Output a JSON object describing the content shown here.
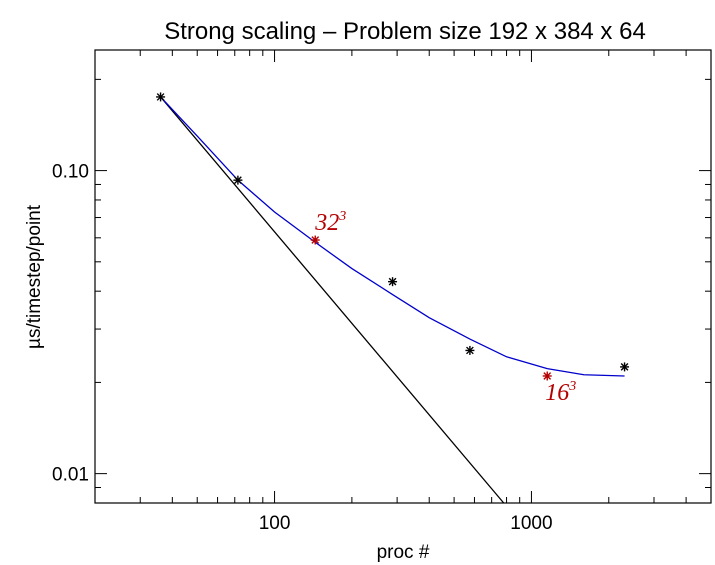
{
  "chart_data": {
    "type": "scatter",
    "title": "Strong scaling – Problem size 192 x 384 x 64",
    "xlabel": "proc #",
    "ylabel": "µs/timestep/point",
    "x_scale": "log",
    "y_scale": "log",
    "xlim": [
      20,
      5000
    ],
    "ylim": [
      0.008,
      0.25
    ],
    "x_ticks": [
      {
        "value": 100,
        "label": "100"
      },
      {
        "value": 1000,
        "label": "1000"
      }
    ],
    "y_ticks": [
      {
        "value": 0.01,
        "label": "0.01"
      },
      {
        "value": 0.1,
        "label": "0.10"
      }
    ],
    "grid": false,
    "series": [
      {
        "kind": "points",
        "color": "#000000",
        "marker": "asterisk",
        "x": [
          36,
          72,
          288,
          576,
          2304
        ],
        "y": [
          0.175,
          0.093,
          0.043,
          0.0255,
          0.0225
        ]
      },
      {
        "kind": "points",
        "color": "#b40000",
        "marker": "asterisk",
        "x": [
          144,
          1152
        ],
        "y": [
          0.059,
          0.021
        ]
      },
      {
        "kind": "ideal-line",
        "color": "#000000",
        "x": [
          36,
          780
        ],
        "y": [
          0.175,
          0.008
        ]
      },
      {
        "kind": "fit-curve",
        "color": "#0000cc",
        "x": [
          36,
          50,
          72,
          100,
          144,
          200,
          288,
          400,
          576,
          800,
          1152,
          1600,
          2304
        ],
        "y": [
          0.175,
          0.13,
          0.093,
          0.073,
          0.058,
          0.0475,
          0.039,
          0.0327,
          0.0278,
          0.0243,
          0.0222,
          0.0212,
          0.021
        ]
      }
    ],
    "annotations": [
      {
        "base": "32",
        "sup": "3",
        "x": 144,
        "y": 0.059,
        "color": "#b40000"
      },
      {
        "base": "16",
        "sup": "3",
        "x": 1152,
        "y": 0.021,
        "color": "#b40000"
      }
    ]
  }
}
